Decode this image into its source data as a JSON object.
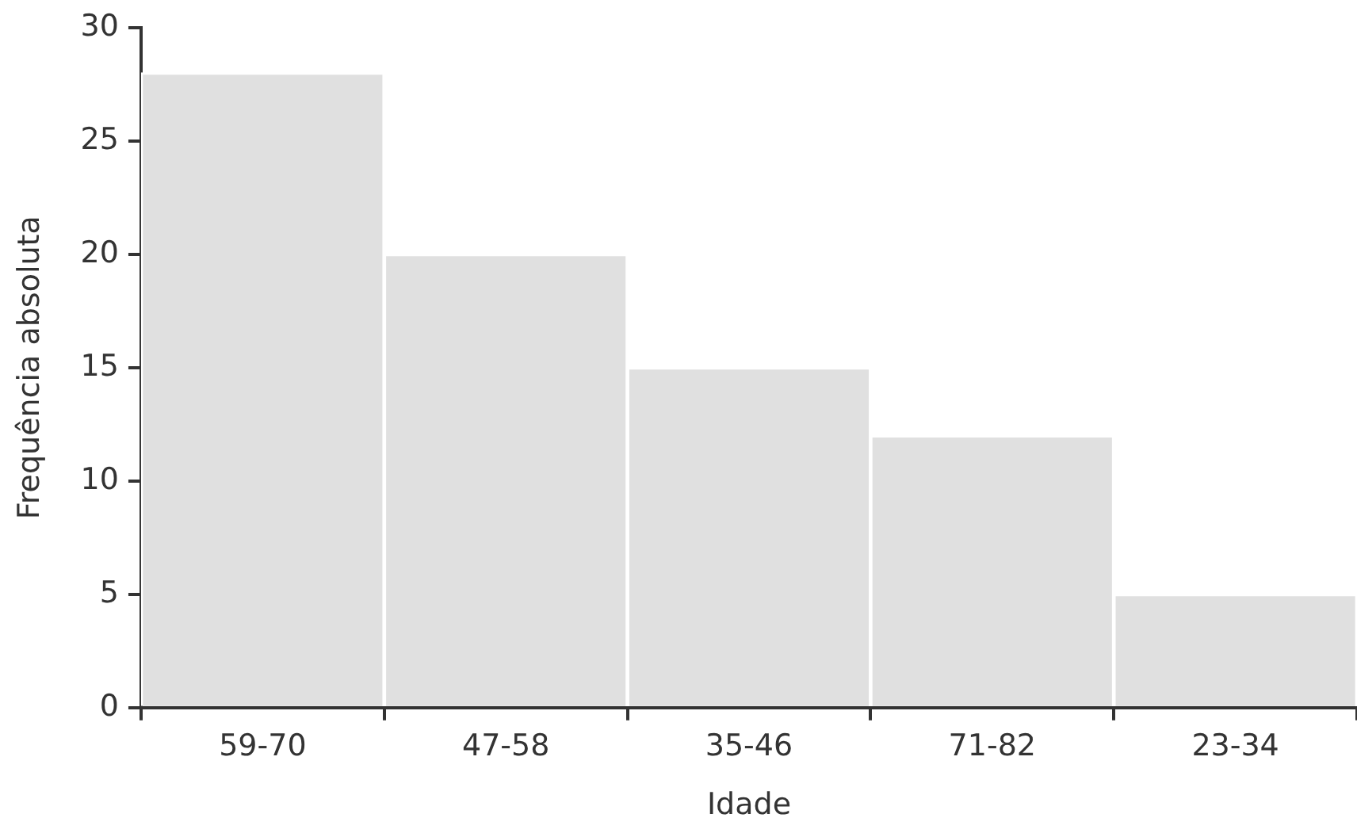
{
  "chart_data": {
    "type": "bar",
    "xlabel": "Idade",
    "ylabel": "Frequência absoluta",
    "categories": [
      "59-70",
      "47-58",
      "35-46",
      "71-82",
      "23-34"
    ],
    "values": [
      28,
      20,
      15,
      12,
      5
    ],
    "color": "#e0e0e0",
    "ylim": [
      0,
      30
    ],
    "yticks": [
      0,
      5,
      10,
      15,
      20,
      25,
      30
    ],
    "grid": false,
    "legend": false
  }
}
